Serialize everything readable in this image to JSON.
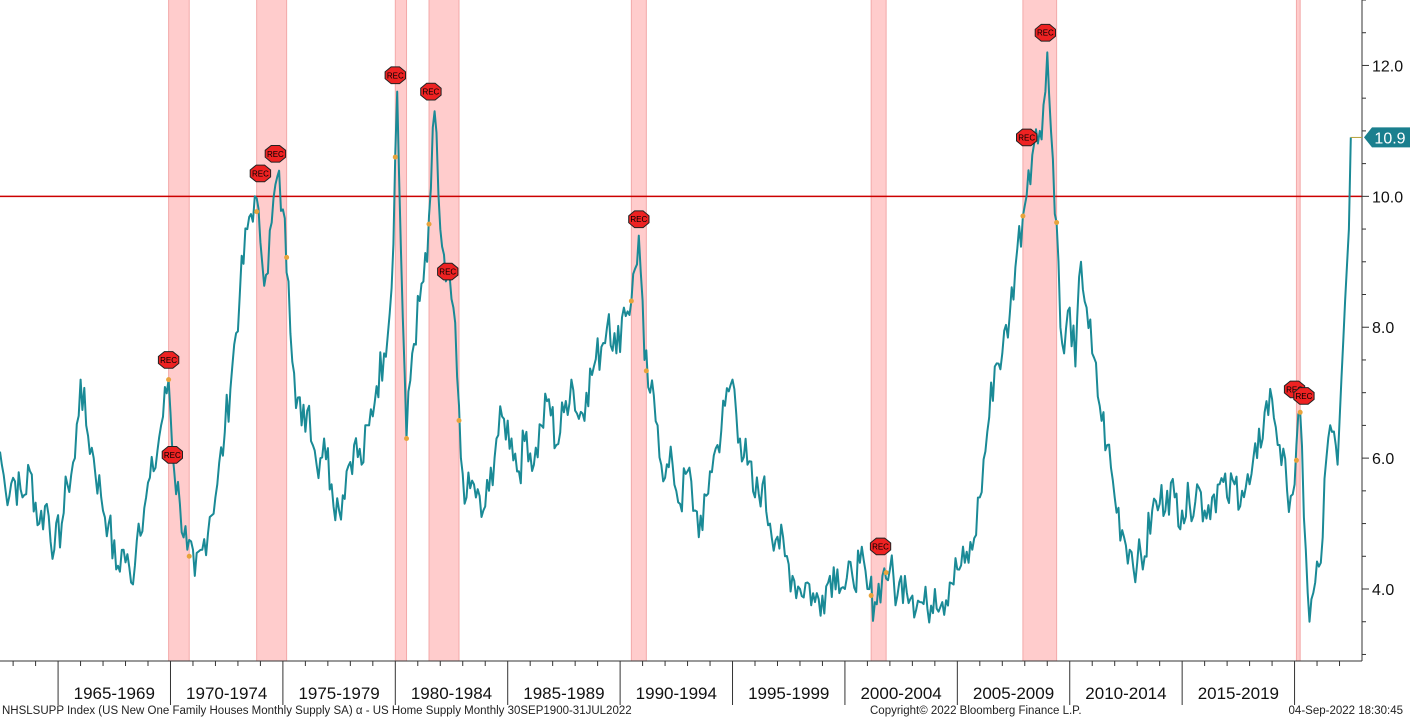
{
  "chart_data": {
    "type": "line",
    "title": "",
    "xlabel": "",
    "ylabel": "",
    "ylim": [
      2.9,
      13.0
    ],
    "xlim": [
      "1962-06",
      "2023-01"
    ],
    "y_ticks": [
      4.0,
      6.0,
      8.0,
      10.0,
      12.0
    ],
    "y_tick_labels": [
      "4.0",
      "6.0",
      "8.0",
      "10.0",
      "12.0"
    ],
    "period_labels": [
      "1965-1969",
      "1970-1974",
      "1975-1979",
      "1980-1984",
      "1985-1989",
      "1990-1994",
      "1995-1999",
      "2000-2004",
      "2005-2009",
      "2010-2014",
      "2015-2019"
    ],
    "reference_line": {
      "value": 10.0,
      "color": "#cc0000"
    },
    "last_value": {
      "label": "10.9",
      "value": 10.9,
      "date": "2022-07"
    },
    "grid": false,
    "legend": "none",
    "colors": {
      "series": "#1a8a96",
      "recession": "#ffcccc",
      "reference": "#cc0000",
      "marker": "#ee2222",
      "dot": "#e8a33c",
      "badge": "#1a7f8e"
    },
    "recession_periods": [
      {
        "start": "1969-12",
        "end": "1970-11"
      },
      {
        "start": "1973-11",
        "end": "1975-03"
      },
      {
        "start": "1980-01",
        "end": "1980-07"
      },
      {
        "start": "1981-07",
        "end": "1982-11"
      },
      {
        "start": "1990-07",
        "end": "1991-03"
      },
      {
        "start": "2001-03",
        "end": "2001-11"
      },
      {
        "start": "2007-12",
        "end": "2009-06"
      },
      {
        "start": "2020-02",
        "end": "2020-04"
      }
    ],
    "rec_markers": [
      {
        "label": "REC",
        "x": "1969-12",
        "y": 7.5
      },
      {
        "label": "REC",
        "x": "1970-02",
        "y": 6.05
      },
      {
        "label": "REC",
        "x": "1974-01",
        "y": 10.35
      },
      {
        "label": "REC",
        "x": "1974-09",
        "y": 10.65
      },
      {
        "label": "REC",
        "x": "1980-01",
        "y": 11.85
      },
      {
        "label": "REC",
        "x": "1981-08",
        "y": 11.6
      },
      {
        "label": "REC",
        "x": "1982-05",
        "y": 8.85
      },
      {
        "label": "REC",
        "x": "1990-11",
        "y": 9.65
      },
      {
        "label": "REC",
        "x": "2001-08",
        "y": 4.65
      },
      {
        "label": "REC",
        "x": "2008-02",
        "y": 10.9
      },
      {
        "label": "REC",
        "x": "2008-12",
        "y": 12.5
      },
      {
        "label": "REC",
        "x": "2020-01",
        "y": 7.05
      },
      {
        "label": "REC",
        "x": "2020-06",
        "y": 6.95
      }
    ],
    "series": [
      {
        "values": [
          [
            "1962-06",
            6.1
          ],
          [
            "1962-09",
            5.5
          ],
          [
            "1963-01",
            5.7
          ],
          [
            "1963-06",
            5.4
          ],
          [
            "1963-10",
            5.8
          ],
          [
            "1964-03",
            5.0
          ],
          [
            "1964-07",
            5.3
          ],
          [
            "1964-11",
            4.6
          ],
          [
            "1965-03",
            5.0
          ],
          [
            "1965-06",
            5.6
          ],
          [
            "1965-10",
            6.0
          ],
          [
            "1966-01",
            7.2
          ],
          [
            "1966-04",
            6.5
          ],
          [
            "1966-08",
            6.0
          ],
          [
            "1966-12",
            5.4
          ],
          [
            "1967-04",
            5.0
          ],
          [
            "1967-08",
            4.3
          ],
          [
            "1967-12",
            4.6
          ],
          [
            "1968-04",
            4.1
          ],
          [
            "1968-08",
            5.0
          ],
          [
            "1968-12",
            5.4
          ],
          [
            "1969-04",
            5.8
          ],
          [
            "1969-08",
            6.5
          ],
          [
            "1969-12",
            7.2
          ],
          [
            "1970-03",
            5.8
          ],
          [
            "1970-06",
            5.3
          ],
          [
            "1970-10",
            4.6
          ],
          [
            "1971-02",
            4.2
          ],
          [
            "1971-06",
            4.6
          ],
          [
            "1971-10",
            5.1
          ],
          [
            "1972-02",
            5.6
          ],
          [
            "1972-06",
            6.4
          ],
          [
            "1972-10",
            7.4
          ],
          [
            "1973-02",
            8.5
          ],
          [
            "1973-06",
            9.5
          ],
          [
            "1973-10",
            10.0
          ],
          [
            "1974-01",
            9.3
          ],
          [
            "1974-04",
            8.8
          ],
          [
            "1974-07",
            9.6
          ],
          [
            "1974-10",
            10.3
          ],
          [
            "1975-01",
            9.8
          ],
          [
            "1975-04",
            8.7
          ],
          [
            "1975-07",
            7.3
          ],
          [
            "1975-11",
            6.5
          ],
          [
            "1976-03",
            6.8
          ],
          [
            "1976-07",
            5.9
          ],
          [
            "1976-11",
            6.3
          ],
          [
            "1977-03",
            5.6
          ],
          [
            "1977-07",
            5.2
          ],
          [
            "1977-11",
            5.8
          ],
          [
            "1978-03",
            6.2
          ],
          [
            "1978-07",
            5.9
          ],
          [
            "1978-11",
            6.5
          ],
          [
            "1979-03",
            7.1
          ],
          [
            "1979-07",
            7.6
          ],
          [
            "1979-11",
            8.6
          ],
          [
            "1980-02",
            11.6
          ],
          [
            "1980-04",
            9.2
          ],
          [
            "1980-07",
            6.3
          ],
          [
            "1980-10",
            7.6
          ],
          [
            "1981-02",
            8.4
          ],
          [
            "1981-06",
            9.0
          ],
          [
            "1981-10",
            11.3
          ],
          [
            "1982-01",
            9.5
          ],
          [
            "1982-04",
            8.7
          ],
          [
            "1982-08",
            8.3
          ],
          [
            "1982-12",
            6.0
          ],
          [
            "1983-03",
            5.4
          ],
          [
            "1983-07",
            5.6
          ],
          [
            "1983-11",
            5.1
          ],
          [
            "1984-03",
            5.5
          ],
          [
            "1984-07",
            6.3
          ],
          [
            "1984-11",
            6.6
          ],
          [
            "1985-03",
            6.3
          ],
          [
            "1985-07",
            5.8
          ],
          [
            "1985-11",
            6.4
          ],
          [
            "1986-03",
            5.9
          ],
          [
            "1986-07",
            6.5
          ],
          [
            "1986-11",
            6.9
          ],
          [
            "1987-03",
            6.2
          ],
          [
            "1987-07",
            6.7
          ],
          [
            "1987-11",
            7.2
          ],
          [
            "1988-03",
            6.6
          ],
          [
            "1988-07",
            7.0
          ],
          [
            "1988-11",
            7.4
          ],
          [
            "1989-03",
            7.7
          ],
          [
            "1989-07",
            8.2
          ],
          [
            "1989-11",
            7.6
          ],
          [
            "1990-03",
            8.3
          ],
          [
            "1990-07",
            8.4
          ],
          [
            "1990-11",
            9.4
          ],
          [
            "1991-02",
            7.5
          ],
          [
            "1991-05",
            7.0
          ],
          [
            "1991-09",
            6.5
          ],
          [
            "1992-01",
            5.7
          ],
          [
            "1992-05",
            5.9
          ],
          [
            "1992-09",
            5.3
          ],
          [
            "1993-01",
            5.8
          ],
          [
            "1993-05",
            5.2
          ],
          [
            "1993-09",
            4.9
          ],
          [
            "1994-01",
            5.8
          ],
          [
            "1994-05",
            6.2
          ],
          [
            "1994-09",
            6.8
          ],
          [
            "1995-01",
            7.2
          ],
          [
            "1995-05",
            6.3
          ],
          [
            "1995-09",
            5.9
          ],
          [
            "1996-01",
            5.4
          ],
          [
            "1996-05",
            5.6
          ],
          [
            "1996-09",
            5.0
          ],
          [
            "1997-01",
            4.8
          ],
          [
            "1997-05",
            4.5
          ],
          [
            "1997-09",
            4.2
          ],
          [
            "1998-01",
            4.0
          ],
          [
            "1998-05",
            4.1
          ],
          [
            "1998-09",
            3.8
          ],
          [
            "1999-01",
            3.9
          ],
          [
            "1999-05",
            4.2
          ],
          [
            "1999-09",
            4.3
          ],
          [
            "2000-01",
            4.0
          ],
          [
            "2000-05",
            4.2
          ],
          [
            "2000-09",
            4.4
          ],
          [
            "2001-01",
            4.0
          ],
          [
            "2001-05",
            3.8
          ],
          [
            "2001-09",
            4.2
          ],
          [
            "2002-01",
            4.3
          ],
          [
            "2002-05",
            3.9
          ],
          [
            "2002-09",
            4.2
          ],
          [
            "2003-01",
            3.9
          ],
          [
            "2003-05",
            3.8
          ],
          [
            "2003-09",
            3.7
          ],
          [
            "2004-01",
            4.0
          ],
          [
            "2004-05",
            3.8
          ],
          [
            "2004-09",
            4.1
          ],
          [
            "2005-01",
            4.3
          ],
          [
            "2005-05",
            4.4
          ],
          [
            "2005-09",
            4.6
          ],
          [
            "2006-01",
            5.4
          ],
          [
            "2006-05",
            6.4
          ],
          [
            "2006-09",
            7.4
          ],
          [
            "2007-01",
            7.6
          ],
          [
            "2007-05",
            8.2
          ],
          [
            "2007-09",
            9.2
          ],
          [
            "2007-12",
            9.7
          ],
          [
            "2008-03",
            10.4
          ],
          [
            "2008-06",
            10.8
          ],
          [
            "2008-09",
            11.0
          ],
          [
            "2008-12",
            11.6
          ],
          [
            "2009-01",
            12.2
          ],
          [
            "2009-03",
            11.0
          ],
          [
            "2009-06",
            9.6
          ],
          [
            "2009-08",
            8.0
          ],
          [
            "2009-10",
            7.6
          ],
          [
            "2010-01",
            8.3
          ],
          [
            "2010-04",
            7.4
          ],
          [
            "2010-07",
            9.0
          ],
          [
            "2010-10",
            8.3
          ],
          [
            "2011-01",
            7.6
          ],
          [
            "2011-05",
            6.8
          ],
          [
            "2011-09",
            6.2
          ],
          [
            "2012-01",
            5.4
          ],
          [
            "2012-05",
            4.9
          ],
          [
            "2012-09",
            4.6
          ],
          [
            "2013-01",
            4.4
          ],
          [
            "2013-05",
            4.5
          ],
          [
            "2013-09",
            5.2
          ],
          [
            "2014-01",
            5.3
          ],
          [
            "2014-05",
            5.5
          ],
          [
            "2014-09",
            5.4
          ],
          [
            "2015-01",
            5.2
          ],
          [
            "2015-05",
            5.3
          ],
          [
            "2015-09",
            5.6
          ],
          [
            "2016-01",
            5.2
          ],
          [
            "2016-05",
            5.4
          ],
          [
            "2016-09",
            5.6
          ],
          [
            "2017-01",
            5.4
          ],
          [
            "2017-05",
            5.6
          ],
          [
            "2017-09",
            5.5
          ],
          [
            "2018-01",
            5.6
          ],
          [
            "2018-05",
            6.0
          ],
          [
            "2018-09",
            6.7
          ],
          [
            "2019-01",
            6.9
          ],
          [
            "2019-05",
            6.2
          ],
          [
            "2019-09",
            5.5
          ],
          [
            "2020-01",
            5.6
          ],
          [
            "2020-04",
            6.7
          ],
          [
            "2020-07",
            4.6
          ],
          [
            "2020-09",
            3.5
          ],
          [
            "2020-12",
            4.1
          ],
          [
            "2021-03",
            4.4
          ],
          [
            "2021-06",
            6.0
          ],
          [
            "2021-09",
            6.4
          ],
          [
            "2021-12",
            5.9
          ],
          [
            "2022-02",
            7.2
          ],
          [
            "2022-04",
            8.4
          ],
          [
            "2022-06",
            9.5
          ],
          [
            "2022-07",
            10.9
          ]
        ]
      }
    ]
  },
  "footer": {
    "source": "NHSLSUPP Index (US New One Family Houses Monthly Supply SA) α - US Home Supply  Monthly 30SEP1900-31JUL2022",
    "copyright": "Copyright© 2022 Bloomberg Finance L.P.",
    "date": "04-Sep-2022 18:30:45"
  }
}
